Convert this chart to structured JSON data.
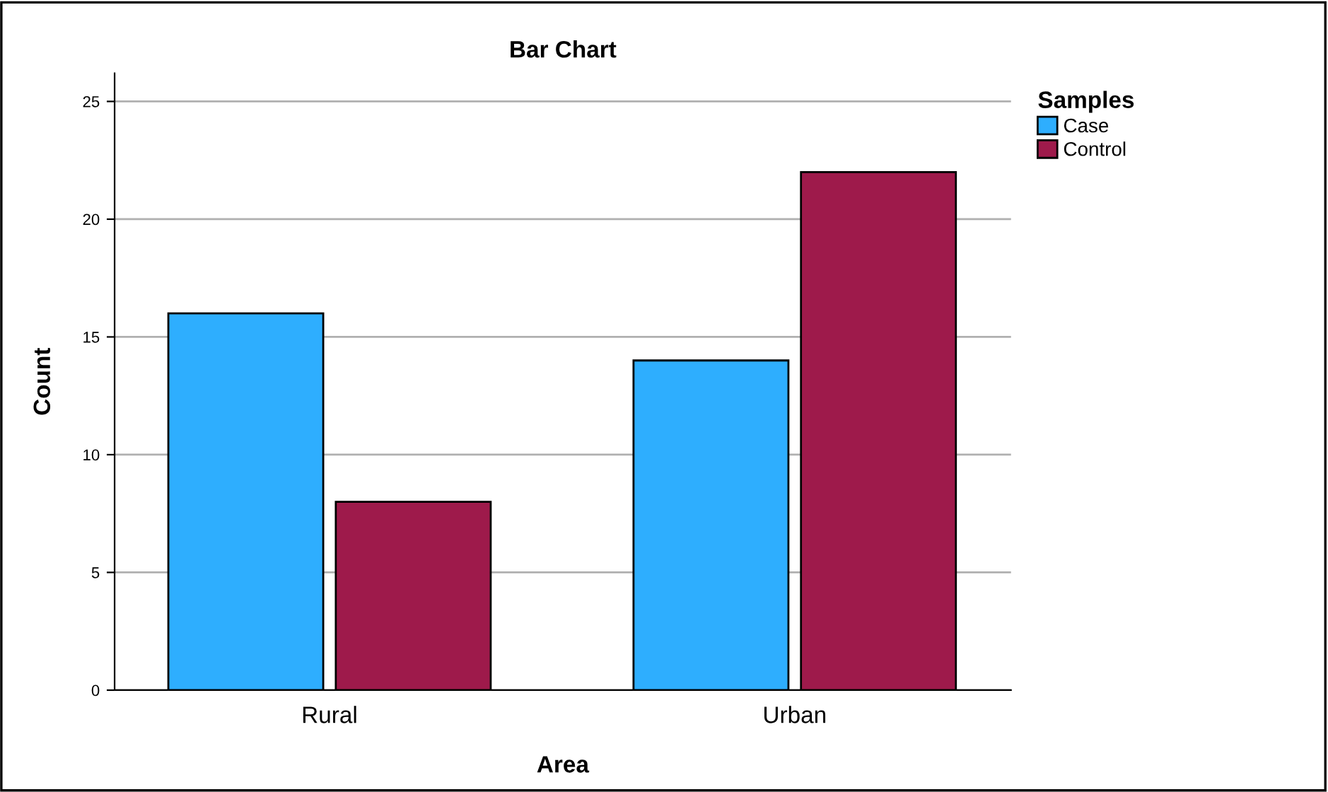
{
  "chart_data": {
    "type": "bar",
    "title": "Bar Chart",
    "xlabel": "Area",
    "ylabel": "Count",
    "legend_title": "Samples",
    "categories": [
      "Rural",
      "Urban"
    ],
    "series": [
      {
        "name": "Case",
        "color": "#2eaefe",
        "values": [
          16,
          14
        ]
      },
      {
        "name": "Control",
        "color": "#9e1a4b",
        "values": [
          8,
          22
        ]
      }
    ],
    "ylim": [
      0,
      26.2
    ],
    "yticks": [
      0,
      5,
      10,
      15,
      20,
      25
    ],
    "grid": "y",
    "legend": "top right"
  }
}
